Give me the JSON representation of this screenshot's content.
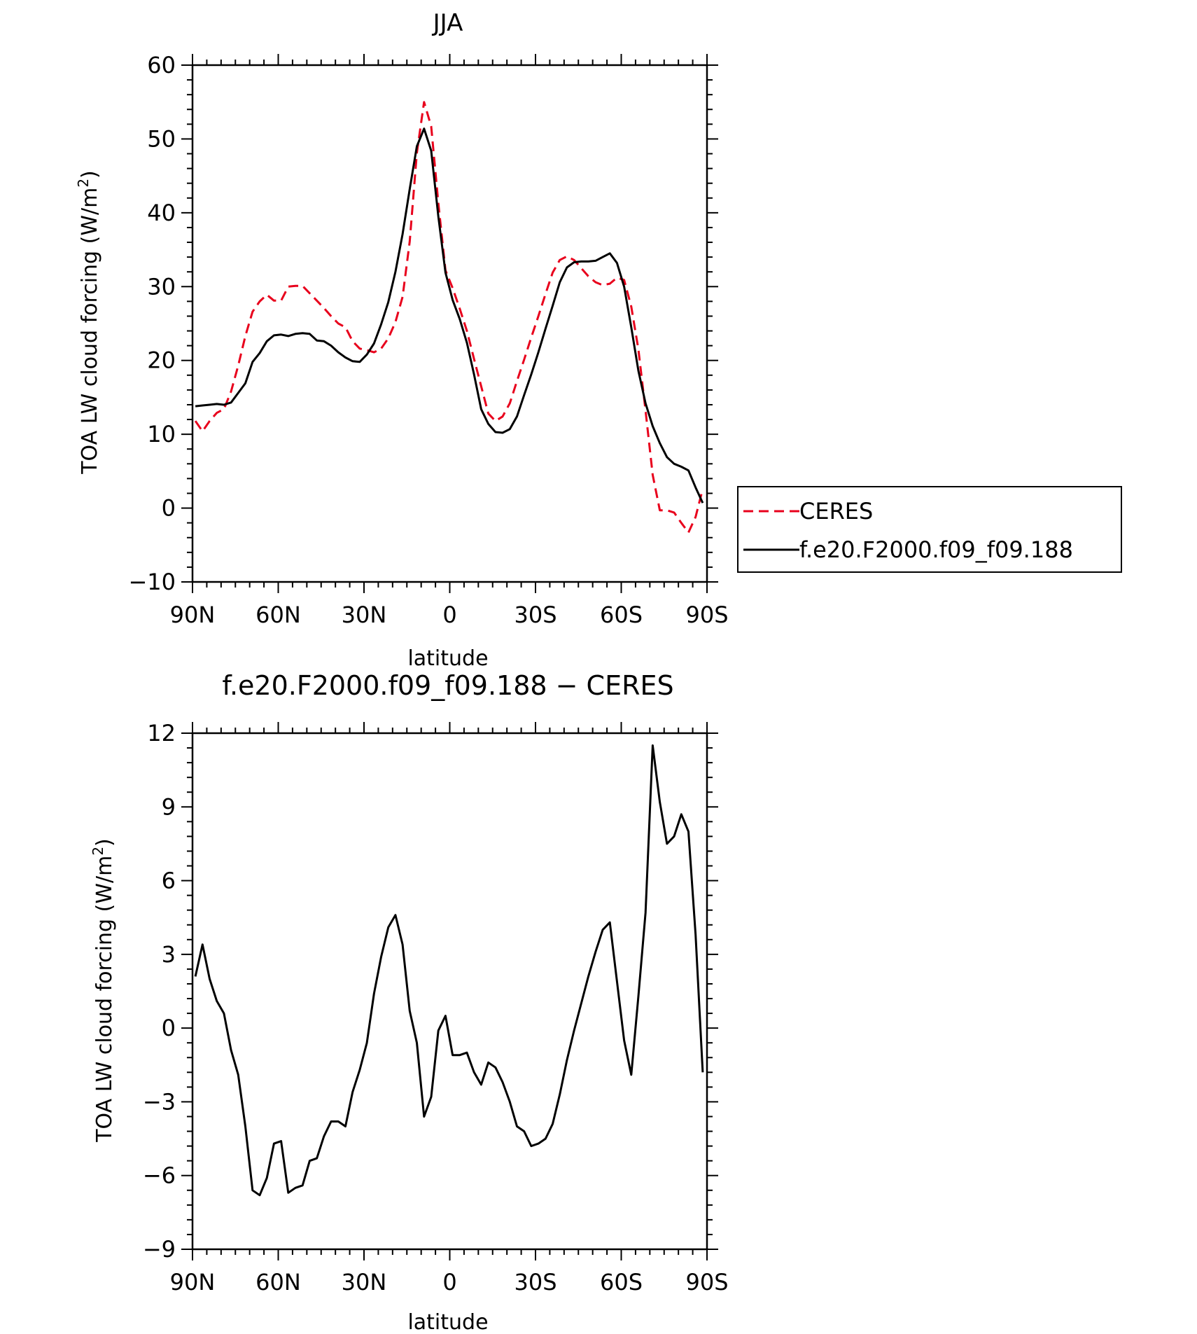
{
  "chart_data": [
    {
      "type": "line",
      "title": "JJA",
      "xlabel": "latitude",
      "ylabel": "TOA LW cloud forcing (W/m",
      "ylabel_sup": "2",
      "ylabel_close": ")",
      "xlim": [
        90,
        -90
      ],
      "ylim": [
        -10,
        60
      ],
      "y_major_ticks": [
        -10,
        0,
        10,
        20,
        30,
        40,
        50,
        60
      ],
      "x_major_ticks": [
        90,
        60,
        30,
        0,
        -30,
        -60,
        -90
      ],
      "x_tick_labels": [
        "90N",
        "60N",
        "30N",
        "0",
        "30S",
        "60S",
        "90S"
      ],
      "legend_position": "right",
      "legend": [
        "CERES",
        "f.e20.F2000.f09_f09.188"
      ],
      "x": [
        89,
        86.5,
        84,
        81.5,
        79,
        76.5,
        74,
        71.5,
        69,
        66.5,
        64,
        61.5,
        59,
        56.5,
        54,
        51.5,
        49,
        46.5,
        44,
        41.5,
        39,
        36.5,
        34,
        31.5,
        29,
        26.5,
        24,
        21.5,
        19,
        16.5,
        14,
        11.5,
        9,
        6.5,
        4,
        1.5,
        -1,
        -3.5,
        -6,
        -8.5,
        -11,
        -13.5,
        -16,
        -18.5,
        -21,
        -23.5,
        -26,
        -28.5,
        -31,
        -33.5,
        -36,
        -38.5,
        -41,
        -43.5,
        -46,
        -48.5,
        -51,
        -53.5,
        -56,
        -58.5,
        -61,
        -63.5,
        -66,
        -68.5,
        -71,
        -73.5,
        -76,
        -78.5,
        -81,
        -83.5,
        -86,
        -88.5
      ],
      "series": [
        {
          "name": "CERES",
          "color": "#e8001c",
          "dash": "dashed",
          "values": [
            11.8,
            10.4,
            11.8,
            12.9,
            13.4,
            15.8,
            19.3,
            23.3,
            26.6,
            28.0,
            28.9,
            28.1,
            28.1,
            30.0,
            30.1,
            30.1,
            29.1,
            28.1,
            27.1,
            26.0,
            25.0,
            24.5,
            22.6,
            21.6,
            21.4,
            21.1,
            21.6,
            23.0,
            25.2,
            28.6,
            36.1,
            48.1,
            55.0,
            51.7,
            41.3,
            32.2,
            29.8,
            27.0,
            24.0,
            20.2,
            16.5,
            12.8,
            11.8,
            12.4,
            14.2,
            17.2,
            20.1,
            23.1,
            26.0,
            29.0,
            31.9,
            33.6,
            34.1,
            33.6,
            32.5,
            31.4,
            30.6,
            30.2,
            30.4,
            31.2,
            30.9,
            27.3,
            21.5,
            13.2,
            4.5,
            -0.3,
            -0.3,
            -0.6,
            -2.0,
            -3.3,
            -1.2,
            2.6
          ]
        },
        {
          "name": "f.e20.F2000.f09_f09.188",
          "color": "#000000",
          "dash": "solid",
          "values": [
            13.8,
            13.9,
            14.0,
            14.1,
            14.0,
            14.3,
            15.6,
            16.9,
            19.8,
            21.0,
            22.6,
            23.4,
            23.5,
            23.3,
            23.6,
            23.7,
            23.6,
            22.7,
            22.6,
            22.0,
            21.1,
            20.4,
            19.9,
            19.8,
            20.8,
            22.3,
            24.9,
            27.9,
            32.0,
            37.1,
            43.2,
            49.0,
            51.4,
            48.4,
            39.5,
            31.9,
            28.2,
            25.6,
            22.4,
            18.1,
            13.4,
            11.4,
            10.3,
            10.2,
            10.7,
            12.4,
            15.3,
            18.1,
            21.1,
            24.3,
            27.4,
            30.6,
            32.6,
            33.3,
            33.4,
            33.4,
            33.5,
            34.0,
            34.5,
            33.2,
            30.0,
            24.5,
            18.6,
            14.2,
            11.1,
            8.8,
            6.9,
            6.0,
            5.6,
            5.1,
            2.8,
            0.7
          ]
        }
      ]
    },
    {
      "type": "line",
      "title": "f.e20.F2000.f09_f09.188 − CERES",
      "xlabel": "latitude",
      "ylabel": "TOA LW cloud forcing (W/m",
      "ylabel_sup": "2",
      "ylabel_close": ")",
      "xlim": [
        90,
        -90
      ],
      "ylim": [
        -9,
        12
      ],
      "y_major_ticks": [
        -9,
        -6,
        -3,
        0,
        3,
        6,
        9,
        12
      ],
      "x_major_ticks": [
        90,
        60,
        30,
        0,
        -30,
        -60,
        -90
      ],
      "x_tick_labels": [
        "90N",
        "60N",
        "30N",
        "0",
        "30S",
        "60S",
        "90S"
      ],
      "x": [
        89,
        86.5,
        84,
        81.5,
        79,
        76.5,
        74,
        71.5,
        69,
        66.5,
        64,
        61.5,
        59,
        56.5,
        54,
        51.5,
        49,
        46.5,
        44,
        41.5,
        39,
        36.5,
        34,
        31.5,
        29,
        26.5,
        24,
        21.5,
        19,
        16.5,
        14,
        11.5,
        9,
        6.5,
        4,
        1.5,
        -1,
        -3.5,
        -6,
        -8.5,
        -11,
        -13.5,
        -16,
        -18.5,
        -21,
        -23.5,
        -26,
        -28.5,
        -31,
        -33.5,
        -36,
        -38.5,
        -41,
        -43.5,
        -46,
        -48.5,
        -51,
        -53.5,
        -56,
        -58.5,
        -61,
        -63.5,
        -66,
        -68.5,
        -71,
        -73.5,
        -76,
        -78.5,
        -81,
        -83.5,
        -86,
        -88.5
      ],
      "series": [
        {
          "color": "#000000",
          "dash": "solid",
          "values": [
            2.1,
            3.4,
            2.0,
            1.1,
            0.6,
            -0.9,
            -1.9,
            -4.0,
            -6.6,
            -6.8,
            -6.1,
            -4.7,
            -4.6,
            -6.7,
            -6.5,
            -6.4,
            -5.4,
            -5.3,
            -4.4,
            -3.8,
            -3.8,
            -4.0,
            -2.6,
            -1.7,
            -0.6,
            1.4,
            2.9,
            4.1,
            4.6,
            3.4,
            0.7,
            -0.6,
            -3.6,
            -2.8,
            -0.1,
            0.5,
            -1.1,
            -1.1,
            -1.0,
            -1.8,
            -2.3,
            -1.4,
            -1.6,
            -2.2,
            -3.0,
            -4.0,
            -4.2,
            -4.8,
            -4.7,
            -4.5,
            -3.9,
            -2.7,
            -1.3,
            -0.1,
            1.0,
            2.1,
            3.1,
            4.0,
            4.3,
            1.9,
            -0.5,
            -1.9,
            1.3,
            4.7,
            11.5,
            9.2,
            7.5,
            7.8,
            8.7,
            8.0,
            3.8,
            -1.8
          ]
        }
      ]
    }
  ]
}
